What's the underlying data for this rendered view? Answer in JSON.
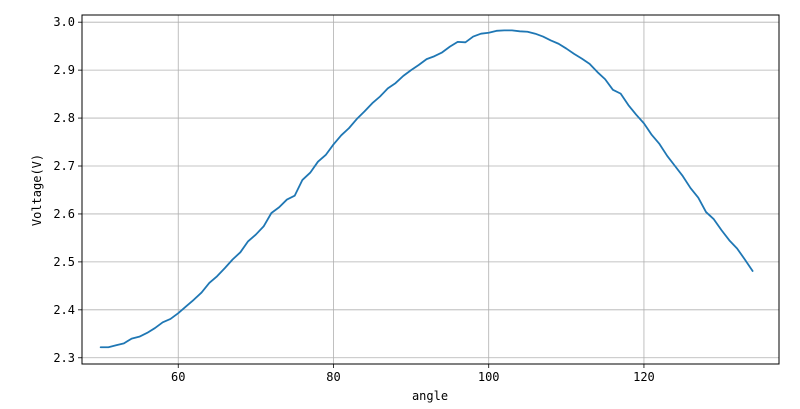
{
  "chart_data": {
    "type": "line",
    "title": "",
    "xlabel": "angle",
    "ylabel": "Voltage(V)",
    "xlim": [
      47.6,
      137.4
    ],
    "ylim": [
      2.287,
      3.015
    ],
    "xticks": [
      60,
      80,
      100,
      120
    ],
    "yticks": [
      2.3,
      2.4,
      2.5,
      2.6,
      2.7,
      2.8,
      2.9,
      3.0
    ],
    "xtick_labels": [
      "60",
      "80",
      "100",
      "120"
    ],
    "ytick_labels": [
      "2.3",
      "2.4",
      "2.5",
      "2.6",
      "2.7",
      "2.8",
      "2.9",
      "3.0"
    ],
    "grid": true,
    "line_color": "#1f77b4",
    "series": [
      {
        "x": [
          50,
          51,
          52,
          53,
          54,
          55,
          56,
          57,
          58,
          59,
          60,
          61,
          62,
          63,
          64,
          65,
          66,
          67,
          68,
          69,
          70,
          71,
          72,
          73,
          74,
          75,
          76,
          77,
          78,
          79,
          80,
          81,
          82,
          83,
          84,
          85,
          86,
          87,
          88,
          89,
          90,
          91,
          92,
          93,
          94,
          95,
          96,
          97,
          98,
          99,
          100,
          101,
          102,
          103,
          104,
          105,
          106,
          107,
          108,
          109,
          110,
          111,
          112,
          113,
          114,
          115,
          116,
          117,
          118,
          119,
          120,
          121,
          122,
          123,
          124,
          125,
          126,
          127,
          128,
          129,
          130,
          131,
          132,
          133,
          134
        ],
        "values": [
          2.322,
          2.322,
          2.326,
          2.33,
          2.34,
          2.344,
          2.352,
          2.362,
          2.374,
          2.381,
          2.393,
          2.407,
          2.421,
          2.436,
          2.456,
          2.47,
          2.487,
          2.505,
          2.52,
          2.543,
          2.557,
          2.574,
          2.602,
          2.614,
          2.63,
          2.638,
          2.671,
          2.686,
          2.709,
          2.723,
          2.745,
          2.764,
          2.779,
          2.798,
          2.814,
          2.831,
          2.845,
          2.862,
          2.873,
          2.888,
          2.9,
          2.911,
          2.923,
          2.929,
          2.937,
          2.949,
          2.959,
          2.958,
          2.97,
          2.976,
          2.978,
          2.982,
          2.983,
          2.983,
          2.981,
          2.98,
          2.976,
          2.97,
          2.962,
          2.955,
          2.945,
          2.934,
          2.924,
          2.913,
          2.896,
          2.881,
          2.859,
          2.851,
          2.827,
          2.807,
          2.789,
          2.765,
          2.746,
          2.721,
          2.7,
          2.679,
          2.654,
          2.634,
          2.604,
          2.589,
          2.566,
          2.545,
          2.528,
          2.505,
          2.481
        ]
      }
    ]
  }
}
